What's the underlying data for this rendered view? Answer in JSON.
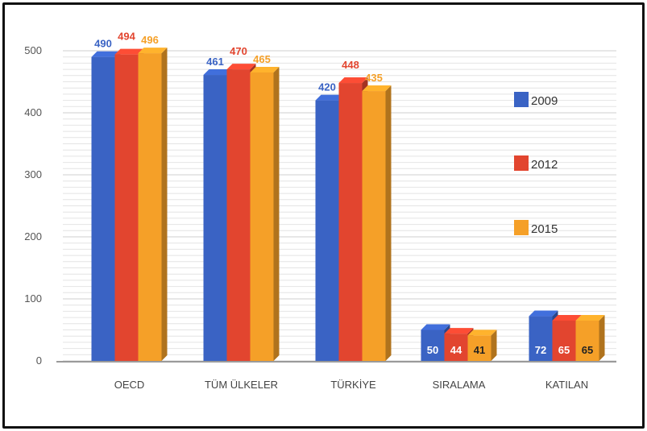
{
  "chart_data": {
    "type": "bar",
    "categories": [
      "OECD",
      "TÜM ÜLKELER",
      "TÜRKİYE",
      "SIRALAMA",
      "KATILAN"
    ],
    "series": [
      {
        "name": "2009",
        "values": [
          490,
          461,
          420,
          50,
          72
        ],
        "color": "#3a63c4"
      },
      {
        "name": "2012",
        "values": [
          494,
          470,
          448,
          44,
          65
        ],
        "color": "#e2452f"
      },
      {
        "name": "2015",
        "values": [
          496,
          465,
          435,
          41,
          65
        ],
        "color": "#f5a028"
      }
    ],
    "ylim": [
      0,
      500
    ],
    "yticks": [
      0,
      100,
      200,
      300,
      400,
      500
    ],
    "grid": true,
    "legend_position": "right",
    "title": "",
    "xlabel": "",
    "ylabel": ""
  }
}
